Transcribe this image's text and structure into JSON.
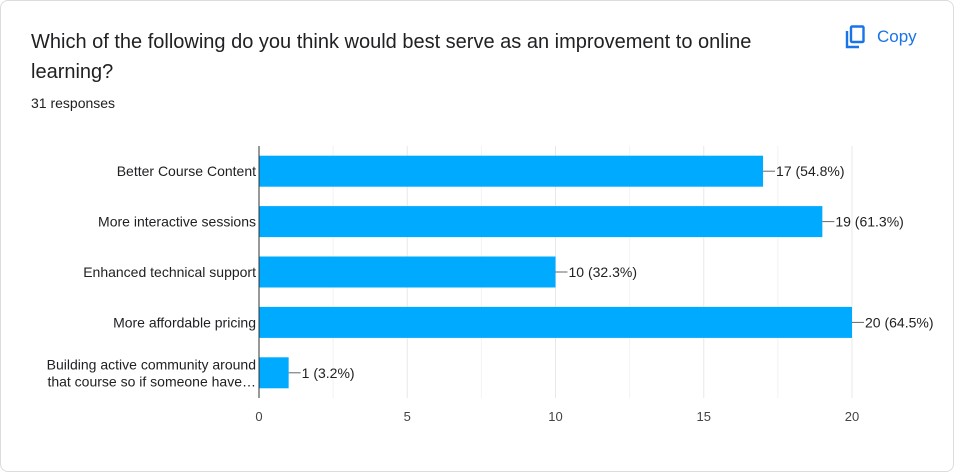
{
  "card": {
    "title": "Which of the following do you think would best serve as an improvement to online learning?",
    "responses": "31 responses",
    "copy_label": "Copy",
    "copy_icon": "copy-icon"
  },
  "colors": {
    "bar": "#00aaff",
    "accent": "#1a73e8",
    "grid": "#e8e8e8",
    "axis": "#333333"
  },
  "chart_data": {
    "type": "bar",
    "orientation": "horizontal",
    "categories": [
      [
        "Better Course Content"
      ],
      [
        "More interactive sessions"
      ],
      [
        "Enhanced technical support"
      ],
      [
        "More affordable pricing"
      ],
      [
        "Building active community around",
        "that course so if someone have…"
      ]
    ],
    "values": [
      17,
      19,
      10,
      20,
      1
    ],
    "value_labels": [
      "17 (54.8%)",
      "19 (61.3%)",
      "10 (32.3%)",
      "20 (64.5%)",
      "1 (3.2%)"
    ],
    "xlim": [
      0,
      20
    ],
    "xticks": [
      0,
      5,
      10,
      15,
      20
    ],
    "grid": true,
    "title": "",
    "xlabel": "",
    "ylabel": ""
  }
}
